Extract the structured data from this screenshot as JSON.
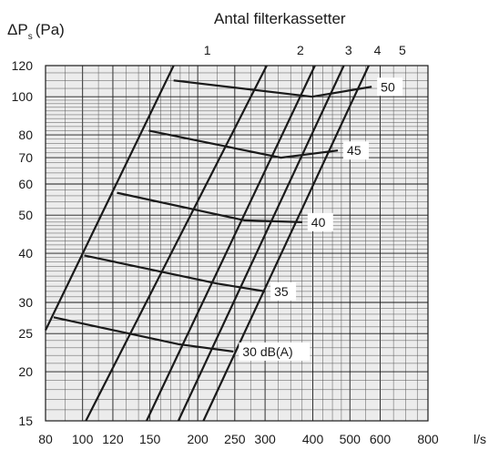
{
  "chart_data": {
    "type": "line",
    "title": "Antal filterkassetter",
    "ylabel_main": "ΔP",
    "ylabel_sub": "s",
    "ylabel_unit": "(Pa)",
    "x_scale": "log",
    "y_scale": "log",
    "xlim": [
      80,
      800
    ],
    "ylim": [
      15,
      120
    ],
    "grid": true,
    "x_ticks": [
      80,
      100,
      120,
      150,
      200,
      250,
      300,
      400,
      500,
      600,
      800
    ],
    "x_tick_labels": [
      "80",
      "100",
      "120",
      "150",
      "200",
      "250",
      "300",
      "400",
      "500",
      "600",
      "800"
    ],
    "x_unit": "l/s",
    "y_ticks": [
      15,
      20,
      25,
      30,
      40,
      50,
      60,
      70,
      80,
      100,
      120
    ],
    "y_tick_labels": [
      "15",
      "20",
      "25",
      "30",
      "40",
      "50",
      "60",
      "70",
      "80",
      "100",
      "120"
    ],
    "filter_lines": [
      {
        "label": "1",
        "points": [
          [
            80,
            25.5
          ],
          [
            173,
            120
          ]
        ]
      },
      {
        "label": "2",
        "points": [
          [
            102,
            15
          ],
          [
            303,
            120
          ]
        ]
      },
      {
        "label": "3",
        "points": [
          [
            147,
            15
          ],
          [
            405,
            120
          ]
        ]
      },
      {
        "label": "4",
        "points": [
          [
            178,
            15
          ],
          [
            482,
            120
          ]
        ]
      },
      {
        "label": "5",
        "points": [
          [
            207,
            15
          ],
          [
            560,
            120
          ]
        ]
      }
    ],
    "sound_curves": [
      {
        "label": "50",
        "points": [
          [
            173,
            110
          ],
          [
            398,
            100
          ],
          [
            570,
            106
          ]
        ]
      },
      {
        "label": "45",
        "points": [
          [
            149,
            82
          ],
          [
            330,
            70
          ],
          [
            465,
            73
          ]
        ]
      },
      {
        "label": "40",
        "points": [
          [
            123,
            57
          ],
          [
            265,
            48.5
          ],
          [
            375,
            48
          ]
        ]
      },
      {
        "label": "35",
        "points": [
          [
            101,
            39.5
          ],
          [
            225,
            33.5
          ],
          [
            300,
            32
          ]
        ]
      },
      {
        "label": "30 dB(A)",
        "points": [
          [
            84,
            27.5
          ],
          [
            178,
            23.5
          ],
          [
            248,
            22.5
          ]
        ]
      }
    ]
  }
}
